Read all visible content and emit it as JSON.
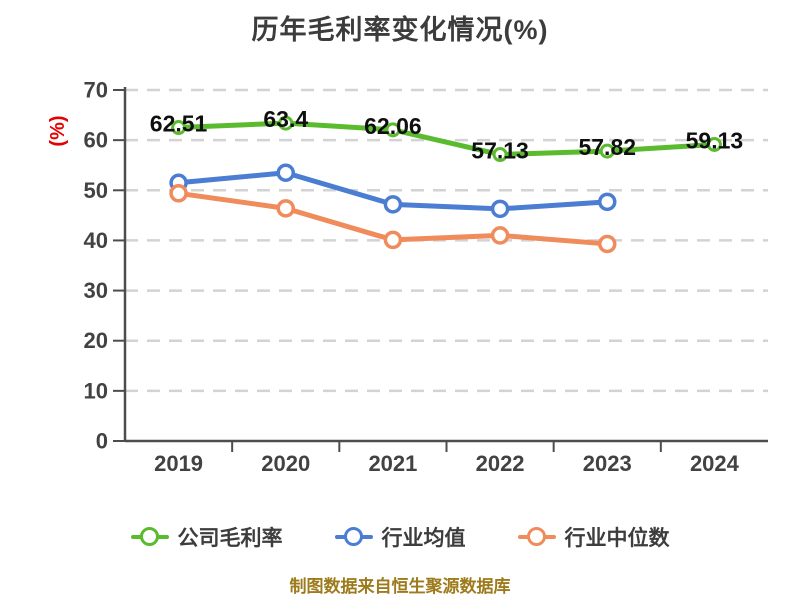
{
  "chart_data": {
    "type": "line",
    "title": "历年毛利率变化情况(%)",
    "ylabel": "(%)",
    "ylabel_color": "#e60000",
    "categories": [
      "2019",
      "2020",
      "2021",
      "2022",
      "2023",
      "2024"
    ],
    "series": [
      {
        "name": "公司毛利率",
        "color": "#5bbb2e",
        "values": [
          62.51,
          63.4,
          62.06,
          57.13,
          57.82,
          59.13
        ],
        "value_labels": [
          "62.51",
          "63.4",
          "62.06",
          "57.13",
          "57.82",
          "59.13"
        ],
        "show_labels": true
      },
      {
        "name": "行业均值",
        "color": "#4b7dd3",
        "values": [
          51.5,
          53.5,
          47.2,
          46.3,
          47.7,
          null
        ],
        "show_labels": false
      },
      {
        "name": "行业中位数",
        "color": "#f08b5b",
        "values": [
          49.4,
          46.4,
          40.1,
          41.0,
          39.3,
          null
        ],
        "show_labels": false
      }
    ],
    "ylim": [
      0,
      70
    ],
    "ytick_step": 10,
    "grid": "horizontal-dashed",
    "legend_position": "bottom"
  },
  "footer": {
    "text": "制图数据来自恒生聚源数据库"
  },
  "colors": {
    "title_text": "#3c3c3c",
    "axis_line": "#4d4d4d",
    "tick_label": "#424242",
    "gridline": "#d3d3d3",
    "data_label": "#0f0f0f",
    "footer_text": "#9d7b1d",
    "marker_fill": "#ffffff"
  }
}
